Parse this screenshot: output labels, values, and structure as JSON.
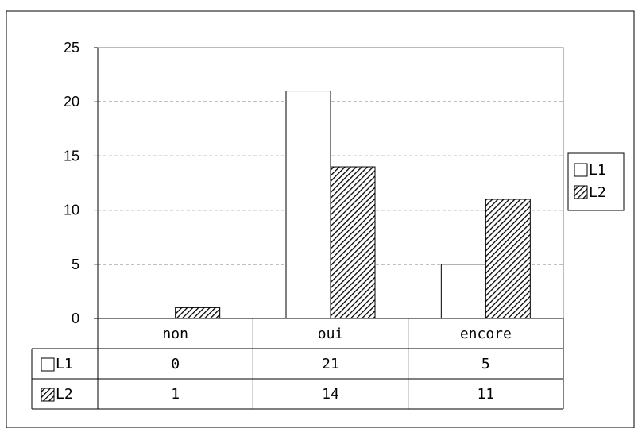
{
  "chart_data": {
    "type": "bar",
    "categories": [
      "non",
      "oui",
      "encore"
    ],
    "series": [
      {
        "name": "L1",
        "values": [
          0,
          21,
          5
        ],
        "pattern": "white",
        "color": "#ffffff"
      },
      {
        "name": "L2",
        "values": [
          1,
          14,
          11
        ],
        "pattern": "diagonal-hatch",
        "color": "#000000"
      }
    ],
    "y_ticks": [
      "0",
      "5",
      "10",
      "15",
      "20",
      "25"
    ],
    "ylim": [
      0,
      25
    ],
    "grid": "dashed-horizontal",
    "legend_position": "right",
    "data_table": true
  }
}
